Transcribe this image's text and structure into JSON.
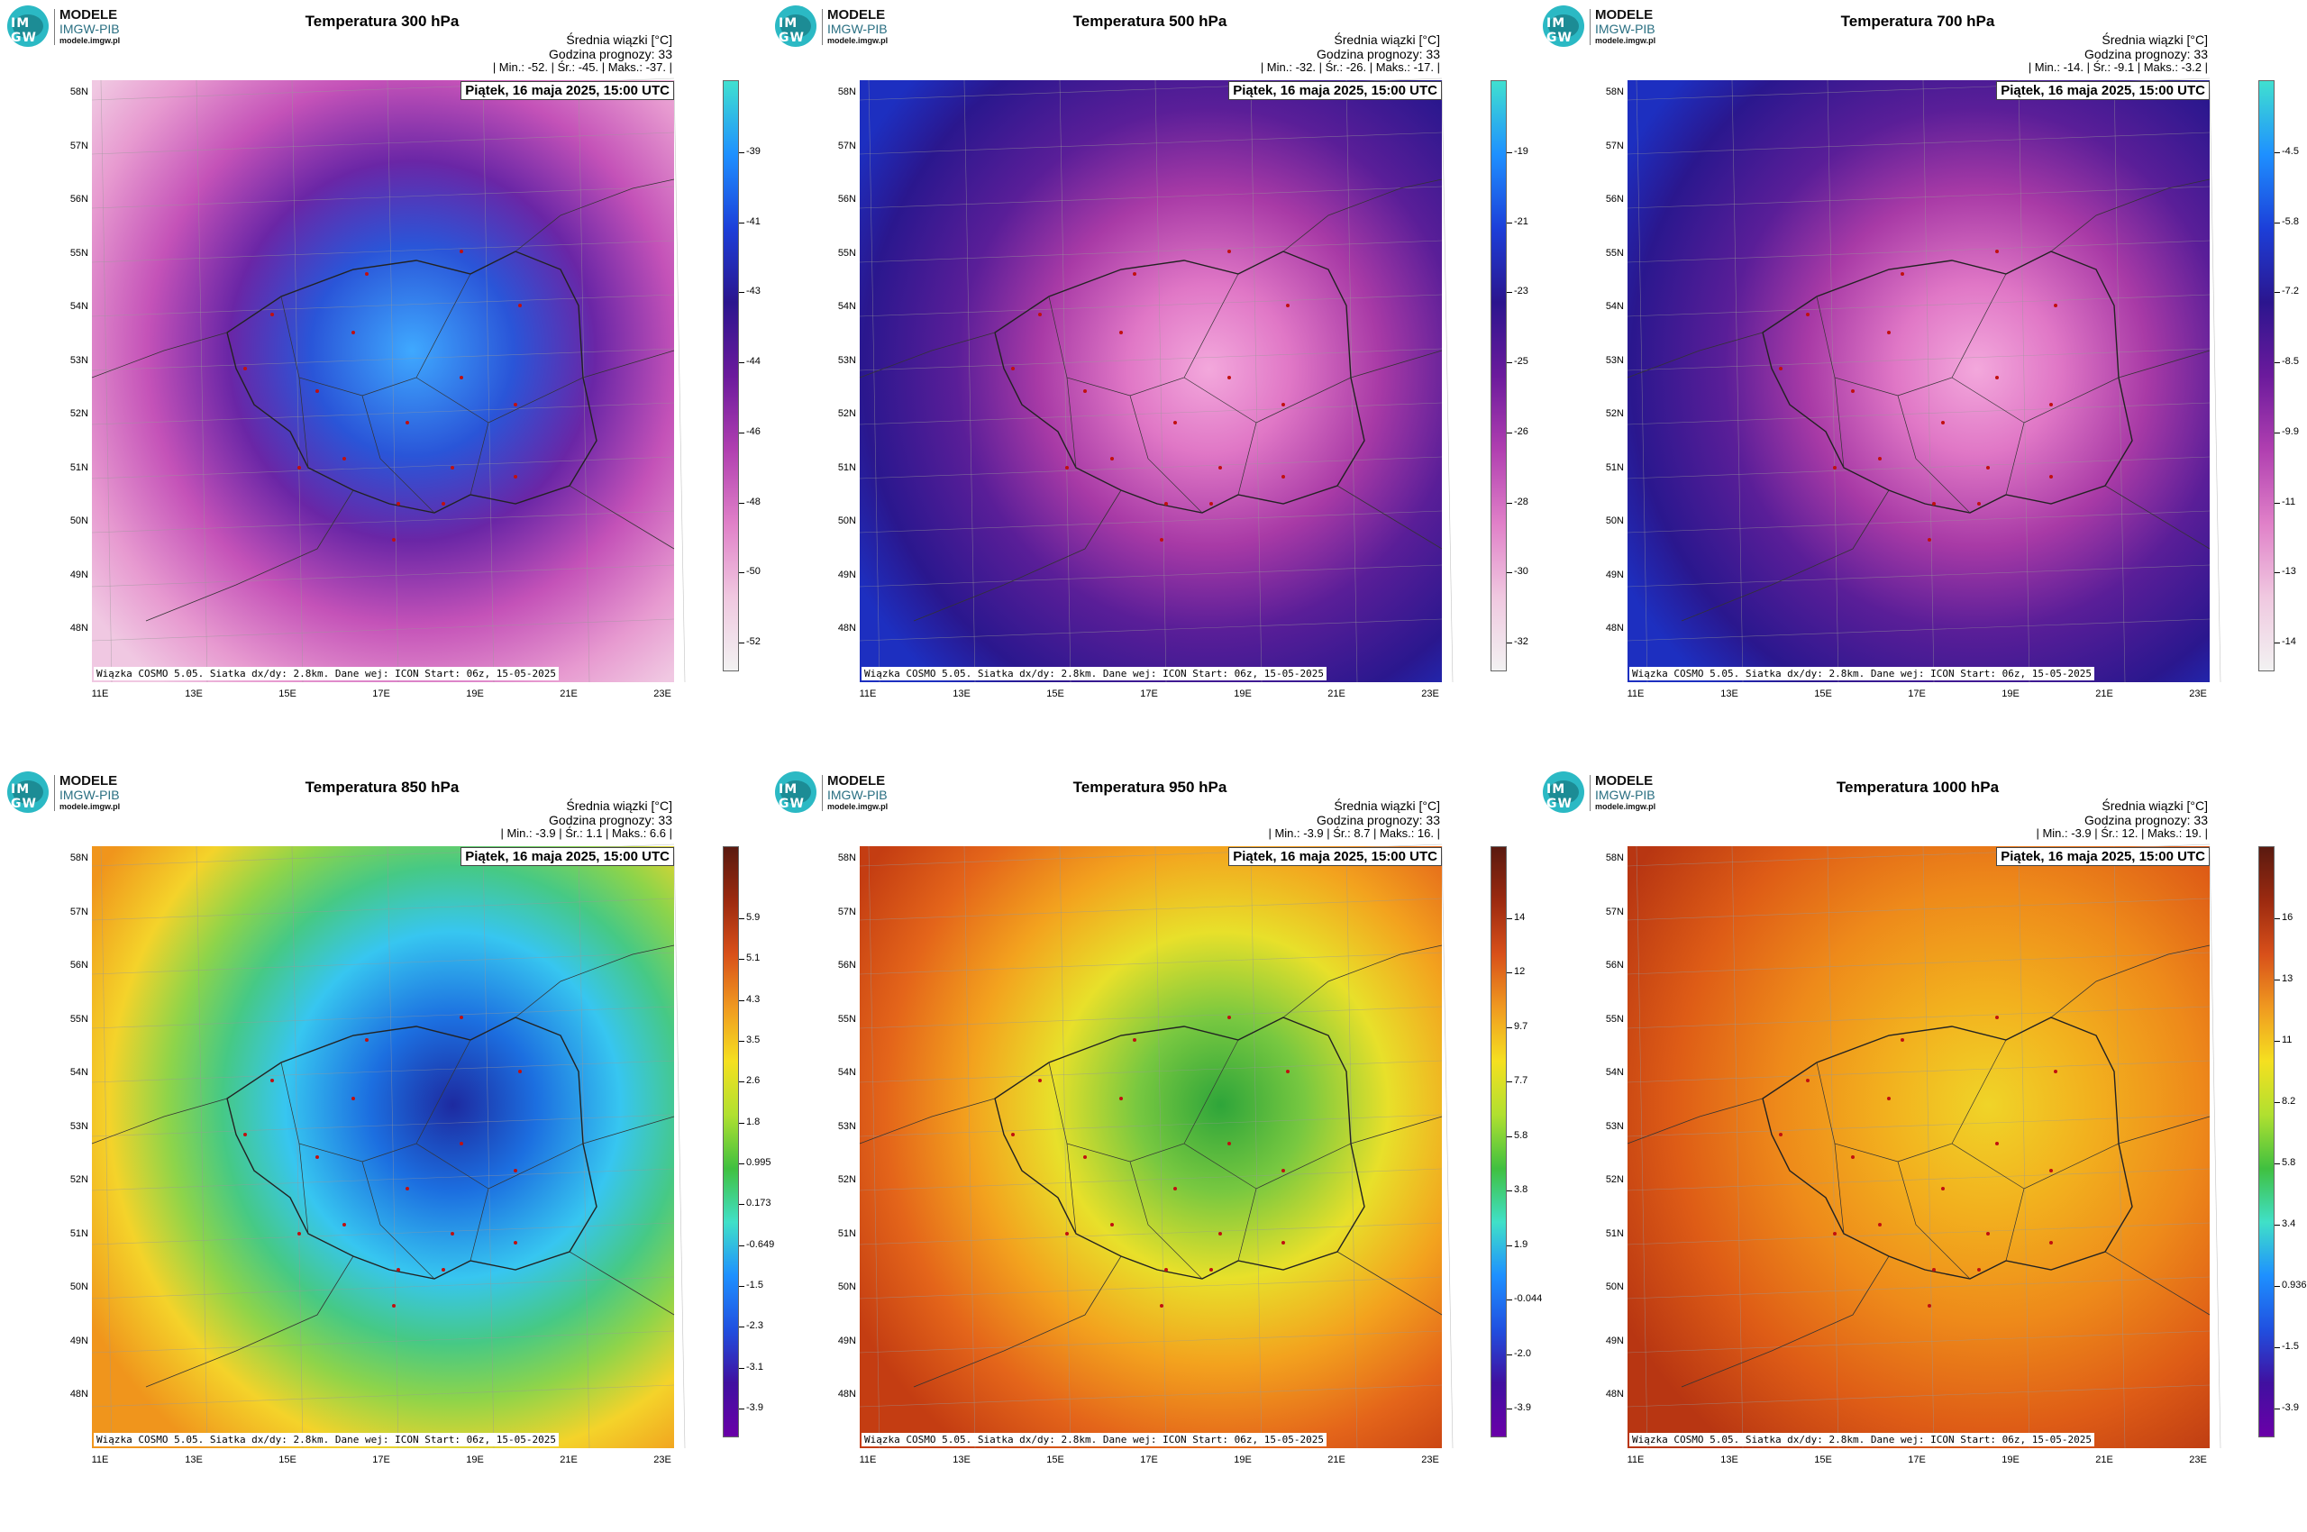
{
  "logo": {
    "line1": "MODELE",
    "line2": "IMGW-PIB",
    "line3": "modele.imgw.pl",
    "mark": "IM GW"
  },
  "common": {
    "header_line1": "Średnia wiązki [°C]",
    "header_line2": "Godzina prognozy: 33",
    "date": "Piątek, 16 maja 2025, 15:00 UTC",
    "footer": "Wiązka COSMO 5.05. Siatka dx/dy: 2.8km. Dane wej: ICON Start: 06z, 15-05-2025",
    "lat_labels": [
      "58N",
      "57N",
      "56N",
      "55N",
      "54N",
      "53N",
      "52N",
      "51N",
      "50N",
      "49N",
      "48N"
    ],
    "lon_labels": [
      "11E",
      "13E",
      "15E",
      "17E",
      "19E",
      "21E",
      "23E"
    ]
  },
  "panels": [
    {
      "title": "Temperatura 300 hPa",
      "stats": "| Min.:    -52. | Śr.:    -45. | Maks.:    -37. |",
      "scale": "cold",
      "colorbar": [
        "-39",
        "-41",
        "-43",
        "-44",
        "-46",
        "-48",
        "-50",
        "-52"
      ]
    },
    {
      "title": "Temperatura 500 hPa",
      "stats": "| Min.:    -32. | Śr.:    -26. | Maks.:    -17. |",
      "scale": "cold",
      "colorbar": [
        "-19",
        "-21",
        "-23",
        "-25",
        "-26",
        "-28",
        "-30",
        "-32"
      ]
    },
    {
      "title": "Temperatura 700 hPa",
      "stats": "| Min.:    -14. | Śr.:    -9.1 | Maks.:    -3.2 |",
      "scale": "cold",
      "colorbar": [
        "-4.5",
        "-5.8",
        "-7.2",
        "-8.5",
        "-9.9",
        "-11",
        "-13",
        "-14"
      ]
    },
    {
      "title": "Temperatura 850 hPa",
      "stats": "| Min.:    -3.9 | Śr.:    1.1 | Maks.:    6.6 |",
      "scale": "warm",
      "colorbar": [
        "5.9",
        "5.1",
        "4.3",
        "3.5",
        "2.6",
        "1.8",
        "0.995",
        "0.173",
        "-0.649",
        "-1.5",
        "-2.3",
        "-3.1",
        "-3.9"
      ]
    },
    {
      "title": "Temperatura 950 hPa",
      "stats": "| Min.:    -3.9 | Śr.:    8.7 | Maks.:    16. |",
      "scale": "warm",
      "colorbar": [
        "14",
        "12",
        "9.7",
        "7.7",
        "5.8",
        "3.8",
        "1.9",
        "-0.044",
        "-2.0",
        "-3.9"
      ]
    },
    {
      "title": "Temperatura 1000 hPa",
      "stats": "| Min.:    -3.9 | Śr.:    12. | Maks.:    19. |",
      "scale": "warm",
      "colorbar": [
        "16",
        "13",
        "11",
        "8.2",
        "5.8",
        "3.4",
        "0.936",
        "-1.5",
        "-3.9"
      ]
    }
  ],
  "colors": {
    "cold_scale": [
      "#40e0d0",
      "#1e90ff",
      "#1c3fd9",
      "#2b158e",
      "#6b1a9c",
      "#b03fb0",
      "#e080c8",
      "#f0c8e0",
      "#f2f2f2"
    ],
    "warm_scale": [
      "#5a1a10",
      "#9c2a10",
      "#d8501a",
      "#f09a20",
      "#f5e020",
      "#b0e030",
      "#40c040",
      "#40e0c8",
      "#1e90ff",
      "#2050e0",
      "#4010a0",
      "#6a00a8"
    ]
  }
}
